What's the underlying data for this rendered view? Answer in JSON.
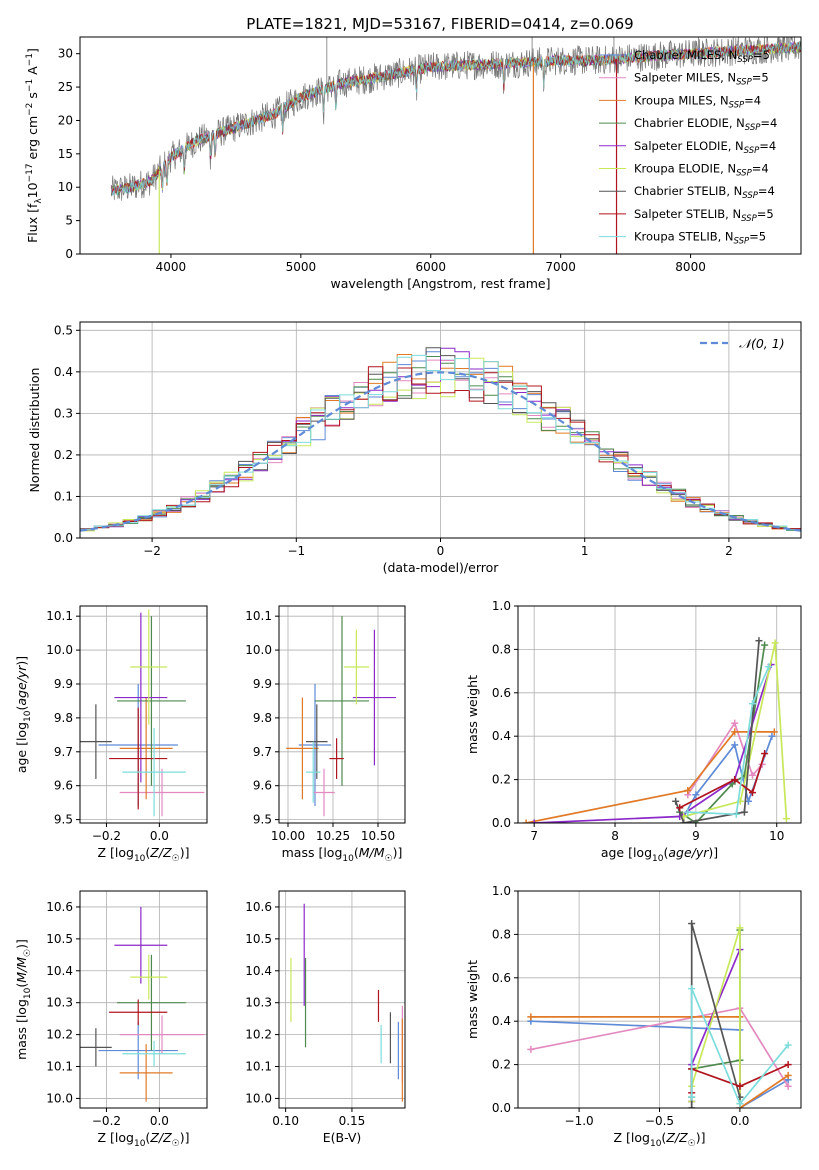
{
  "figure_title": "PLATE=1821, MJD=53167, FIBERID=0414, z=0.069",
  "models": [
    {
      "name": "Chabrier MILES",
      "nssp": "5",
      "color": "#5e8ad6"
    },
    {
      "name": "Salpeter MILES",
      "nssp": "5",
      "color": "#e389c0"
    },
    {
      "name": "Kroupa MILES",
      "nssp": "4",
      "color": "#e07a27"
    },
    {
      "name": "Chabrier ELODIE",
      "nssp": "4",
      "color": "#4e8a4e"
    },
    {
      "name": "Salpeter ELODIE",
      "nssp": "4",
      "color": "#8c2ac9"
    },
    {
      "name": "Kroupa ELODIE",
      "nssp": "4",
      "color": "#c8e85a"
    },
    {
      "name": "Chabrier STELIB",
      "nssp": "4",
      "color": "#555555"
    },
    {
      "name": "Salpeter STELIB",
      "nssp": "5",
      "color": "#b0141e"
    },
    {
      "name": "Kroupa STELIB",
      "nssp": "5",
      "color": "#7ddcdc"
    }
  ],
  "chart_data": [
    {
      "id": "spectrum",
      "type": "line",
      "xlabel": "wavelength [Angstrom, rest frame]",
      "ylabel": "Flux [f_λ 10^-17 erg cm^-2 s^-1 A^-1]",
      "xlim": [
        3300,
        8850
      ],
      "ylim": [
        0,
        32.5
      ],
      "xticks": [
        4000,
        5000,
        6000,
        7000,
        8000
      ],
      "yticks": [
        0,
        5,
        10,
        15,
        20,
        25,
        30
      ],
      "continuum": {
        "x": [
          3550,
          3700,
          3850,
          4000,
          4200,
          4500,
          4800,
          5000,
          5300,
          5600,
          6000,
          6300,
          6600,
          7000,
          7300,
          7600,
          8000,
          8400,
          8850
        ],
        "y": [
          9.5,
          10.0,
          11.0,
          14.5,
          17.0,
          19.0,
          21.0,
          23.5,
          25.5,
          26.5,
          28.0,
          28.3,
          28.5,
          29.0,
          29.0,
          29.5,
          30.0,
          30.5,
          31.0
        ]
      },
      "data_spikes": [
        {
          "x": 5200,
          "y": 32.5
        },
        {
          "x": 6780,
          "y": 32.5
        },
        {
          "x": 7410,
          "y": 32.5
        },
        {
          "x": 8060,
          "y": 32.5
        }
      ],
      "model_dropouts": [
        {
          "x": 3910,
          "y": 0
        },
        {
          "x": 6790,
          "y": 0
        },
        {
          "x": 7430,
          "y": 0
        }
      ],
      "legend_position": "upper right",
      "grid": false
    },
    {
      "id": "residual_hist",
      "type": "histogram",
      "xlabel": "(data-model)/error",
      "ylabel": "Normed distribution",
      "xlim": [
        -2.5,
        2.5
      ],
      "ylim": [
        0,
        0.52
      ],
      "xticks": [
        -2,
        -1,
        0,
        1,
        2
      ],
      "yticks": [
        0.0,
        0.1,
        0.2,
        0.3,
        0.4,
        0.5
      ],
      "bin_edges": [
        -2.5,
        -2.4,
        -2.3,
        -2.2,
        -2.1,
        -2.0,
        -1.9,
        -1.8,
        -1.7,
        -1.6,
        -1.5,
        -1.4,
        -1.3,
        -1.2,
        -1.1,
        -1.0,
        -0.9,
        -0.8,
        -0.7,
        -0.6,
        -0.5,
        -0.4,
        -0.3,
        -0.2,
        -0.1,
        0.0,
        0.1,
        0.2,
        0.3,
        0.4,
        0.5,
        0.6,
        0.7,
        0.8,
        0.9,
        1.0,
        1.1,
        1.2,
        1.3,
        1.4,
        1.5,
        1.6,
        1.7,
        1.8,
        1.9,
        2.0,
        2.1,
        2.2,
        2.3,
        2.4,
        2.5
      ],
      "reference": {
        "label": "𝒩(0, 1)",
        "mean": 0,
        "sigma": 1,
        "color": "#5e8ad6"
      },
      "legend_position": "upper right",
      "grid": true
    },
    {
      "id": "age_vs_Z",
      "type": "errorbar",
      "xlabel": "Z [log10(Z/Z☉)]",
      "ylabel": "age [log10(age/yr)]",
      "xlim": [
        -0.3,
        0.18
      ],
      "ylim": [
        9.49,
        10.13
      ],
      "xticks": [
        -0.2,
        0.0
      ],
      "yticks": [
        9.5,
        9.6,
        9.7,
        9.8,
        9.9,
        10.0,
        10.1
      ],
      "points": [
        {
          "model": 0,
          "x": -0.08,
          "xerr": 0.15,
          "y": 9.72,
          "yerr": 0.18
        },
        {
          "model": 1,
          "x": 0.01,
          "xerr": 0.16,
          "y": 9.58,
          "yerr": 0.07
        },
        {
          "model": 2,
          "x": -0.05,
          "xerr": 0.1,
          "y": 9.71,
          "yerr": 0.15
        },
        {
          "model": 3,
          "x": -0.03,
          "xerr": 0.13,
          "y": 9.85,
          "yerr": 0.25
        },
        {
          "model": 4,
          "x": -0.07,
          "xerr": 0.1,
          "y": 9.86,
          "yerr": 0.25
        },
        {
          "model": 5,
          "x": -0.04,
          "xerr": 0.07,
          "y": 9.95,
          "yerr": 0.17
        },
        {
          "model": 6,
          "x": -0.24,
          "xerr": 0.06,
          "y": 9.73,
          "yerr": 0.11
        },
        {
          "model": 7,
          "x": -0.08,
          "xerr": 0.11,
          "y": 9.68,
          "yerr": 0.15
        },
        {
          "model": 8,
          "x": -0.02,
          "xerr": 0.12,
          "y": 9.64,
          "yerr": 0.13
        }
      ],
      "grid": true
    },
    {
      "id": "age_vs_mass",
      "type": "errorbar",
      "xlabel": "mass [log10(M/M☉)]",
      "ylabel": "",
      "xlim": [
        9.95,
        10.65
      ],
      "ylim": [
        9.49,
        10.13
      ],
      "xticks": [
        10.0,
        10.25,
        10.5
      ],
      "yticks": [
        9.5,
        9.6,
        9.7,
        9.8,
        9.9,
        10.0,
        10.1
      ],
      "points": [
        {
          "model": 0,
          "x": 10.15,
          "xerr": 0.09,
          "y": 9.72,
          "yerr": 0.18
        },
        {
          "model": 1,
          "x": 10.2,
          "xerr": 0.06,
          "y": 9.58,
          "yerr": 0.07
        },
        {
          "model": 2,
          "x": 10.08,
          "xerr": 0.09,
          "y": 9.71,
          "yerr": 0.15
        },
        {
          "model": 3,
          "x": 10.3,
          "xerr": 0.15,
          "y": 9.85,
          "yerr": 0.25
        },
        {
          "model": 4,
          "x": 10.48,
          "xerr": 0.12,
          "y": 9.86,
          "yerr": 0.2
        },
        {
          "model": 5,
          "x": 10.38,
          "xerr": 0.07,
          "y": 9.95,
          "yerr": 0.11
        },
        {
          "model": 6,
          "x": 10.16,
          "xerr": 0.06,
          "y": 9.73,
          "yerr": 0.11
        },
        {
          "model": 7,
          "x": 10.27,
          "xerr": 0.04,
          "y": 9.68,
          "yerr": 0.06
        },
        {
          "model": 8,
          "x": 10.14,
          "xerr": 0.04,
          "y": 9.64,
          "yerr": 0.09
        }
      ],
      "grid": true
    },
    {
      "id": "weight_vs_age",
      "type": "line",
      "xlabel": "age [log10(age/yr)]",
      "ylabel": "mass weight",
      "xlim": [
        6.8,
        10.3
      ],
      "ylim": [
        0,
        1.0
      ],
      "xticks": [
        7,
        8,
        9,
        10
      ],
      "yticks": [
        0.0,
        0.2,
        0.4,
        0.6,
        0.8,
        1.0
      ],
      "series": [
        {
          "model": 0,
          "x": [
            8.85,
            9.0,
            9.48,
            9.65,
            9.94
          ],
          "y": [
            0.03,
            0.13,
            0.36,
            0.1,
            0.4
          ]
        },
        {
          "model": 1,
          "x": [
            8.9,
            9.48,
            9.7,
            9.82
          ],
          "y": [
            0.13,
            0.46,
            0.22,
            0.27
          ]
        },
        {
          "model": 2,
          "x": [
            6.9,
            8.9,
            9.48,
            9.97
          ],
          "y": [
            0.0,
            0.15,
            0.42,
            0.42
          ]
        },
        {
          "model": 3,
          "x": [
            8.8,
            9.0,
            9.45,
            9.6,
            9.85
          ],
          "y": [
            0.05,
            0.0,
            0.18,
            0.22,
            0.82
          ]
        },
        {
          "model": 4,
          "x": [
            7.0,
            8.8,
            9.48,
            9.93
          ],
          "y": [
            0.0,
            0.03,
            0.2,
            0.73
          ]
        },
        {
          "model": 5,
          "x": [
            8.85,
            9.55,
            9.98,
            10.12
          ],
          "y": [
            0.03,
            0.1,
            0.83,
            0.02
          ]
        },
        {
          "model": 6,
          "x": [
            8.75,
            8.85,
            9.6,
            9.78
          ],
          "y": [
            0.1,
            0.0,
            0.05,
            0.84
          ]
        },
        {
          "model": 7,
          "x": [
            8.8,
            9.48,
            9.7,
            9.85
          ],
          "y": [
            0.07,
            0.2,
            0.14,
            0.32
          ]
        },
        {
          "model": 8,
          "x": [
            8.9,
            9.5,
            9.7,
            9.9
          ],
          "y": [
            0.05,
            0.04,
            0.55,
            0.72
          ]
        }
      ],
      "grid": true
    },
    {
      "id": "mass_vs_Z",
      "type": "errorbar",
      "xlabel": "Z [log10(Z/Z☉)]",
      "ylabel": "mass [log10(M/M☉)]",
      "xlim": [
        -0.3,
        0.18
      ],
      "ylim": [
        9.97,
        10.65
      ],
      "xticks": [
        -0.2,
        0.0
      ],
      "yticks": [
        10.0,
        10.1,
        10.2,
        10.3,
        10.4,
        10.5,
        10.6
      ],
      "points": [
        {
          "model": 0,
          "x": -0.08,
          "xerr": 0.15,
          "y": 10.15,
          "yerr": 0.09
        },
        {
          "model": 1,
          "x": 0.01,
          "xerr": 0.16,
          "y": 10.2,
          "yerr": 0.06
        },
        {
          "model": 2,
          "x": -0.05,
          "xerr": 0.1,
          "y": 10.08,
          "yerr": 0.09
        },
        {
          "model": 3,
          "x": -0.03,
          "xerr": 0.13,
          "y": 10.3,
          "yerr": 0.15
        },
        {
          "model": 4,
          "x": -0.07,
          "xerr": 0.1,
          "y": 10.48,
          "yerr": 0.12
        },
        {
          "model": 5,
          "x": -0.04,
          "xerr": 0.07,
          "y": 10.38,
          "yerr": 0.07
        },
        {
          "model": 6,
          "x": -0.24,
          "xerr": 0.06,
          "y": 10.16,
          "yerr": 0.06
        },
        {
          "model": 7,
          "x": -0.08,
          "xerr": 0.11,
          "y": 10.27,
          "yerr": 0.04
        },
        {
          "model": 8,
          "x": -0.02,
          "xerr": 0.12,
          "y": 10.14,
          "yerr": 0.04
        }
      ],
      "grid": true
    },
    {
      "id": "mass_vs_ebv",
      "type": "errorbar",
      "xlabel": "E(B-V)",
      "ylabel": "",
      "xlim": [
        0.095,
        0.19
      ],
      "ylim": [
        9.97,
        10.65
      ],
      "xticks": [
        0.1,
        0.15
      ],
      "yticks": [
        10.0,
        10.1,
        10.2,
        10.3,
        10.4,
        10.5,
        10.6
      ],
      "points": [
        {
          "model": 0,
          "x": 0.185,
          "xerr": 0,
          "y": 10.15,
          "yerr": 0.09
        },
        {
          "model": 1,
          "x": 0.188,
          "xerr": 0,
          "y": 10.17,
          "yerr": 0.12
        },
        {
          "model": 2,
          "x": 0.188,
          "xerr": 0,
          "y": 10.12,
          "yerr": 0.13
        },
        {
          "model": 3,
          "x": 0.115,
          "xerr": 0,
          "y": 10.3,
          "yerr": 0.14
        },
        {
          "model": 4,
          "x": 0.114,
          "xerr": 0,
          "y": 10.45,
          "yerr": 0.16
        },
        {
          "model": 5,
          "x": 0.104,
          "xerr": 0,
          "y": 10.34,
          "yerr": 0.1
        },
        {
          "model": 6,
          "x": 0.179,
          "xerr": 0,
          "y": 10.19,
          "yerr": 0.08
        },
        {
          "model": 7,
          "x": 0.17,
          "xerr": 0,
          "y": 10.29,
          "yerr": 0.05
        },
        {
          "model": 8,
          "x": 0.172,
          "xerr": 0,
          "y": 10.17,
          "yerr": 0.06
        }
      ],
      "grid": true
    },
    {
      "id": "weight_vs_Z",
      "type": "line",
      "xlabel": "Z [log10(Z/Z☉)]",
      "ylabel": "mass weight",
      "xlim": [
        -1.38,
        0.38
      ],
      "ylim": [
        0,
        1.0
      ],
      "xticks": [
        -1.0,
        -0.5,
        0.0
      ],
      "yticks": [
        0.0,
        0.2,
        0.4,
        0.6,
        0.8,
        1.0
      ],
      "series": [
        {
          "model": 0,
          "x": [
            -1.3,
            0.0,
            0.0,
            0.3
          ],
          "y": [
            0.4,
            0.36,
            0.0,
            0.13
          ]
        },
        {
          "model": 1,
          "x": [
            -1.3,
            0.0,
            0.3
          ],
          "y": [
            0.27,
            0.46,
            0.1
          ]
        },
        {
          "model": 2,
          "x": [
            -1.3,
            0.0,
            0.0,
            0.3
          ],
          "y": [
            0.42,
            0.42,
            0.0,
            0.15
          ]
        },
        {
          "model": 3,
          "x": [
            -0.3,
            -0.3,
            0.0,
            0.0
          ],
          "y": [
            0.05,
            0.18,
            0.22,
            0.82
          ]
        },
        {
          "model": 4,
          "x": [
            -0.3,
            -0.3,
            0.0
          ],
          "y": [
            0.03,
            0.2,
            0.73
          ]
        },
        {
          "model": 5,
          "x": [
            -0.3,
            -0.3,
            0.0,
            0.0
          ],
          "y": [
            0.03,
            0.1,
            0.83,
            0.02
          ]
        },
        {
          "model": 6,
          "x": [
            -0.3,
            -0.3,
            0.0
          ],
          "y": [
            0.0,
            0.85,
            0.05
          ]
        },
        {
          "model": 7,
          "x": [
            -0.3,
            -0.3,
            0.0,
            0.3
          ],
          "y": [
            0.07,
            0.18,
            0.1,
            0.2
          ]
        },
        {
          "model": 8,
          "x": [
            -0.3,
            -0.3,
            0.0,
            0.3
          ],
          "y": [
            0.05,
            0.55,
            0.02,
            0.29
          ]
        }
      ],
      "grid": true
    }
  ]
}
